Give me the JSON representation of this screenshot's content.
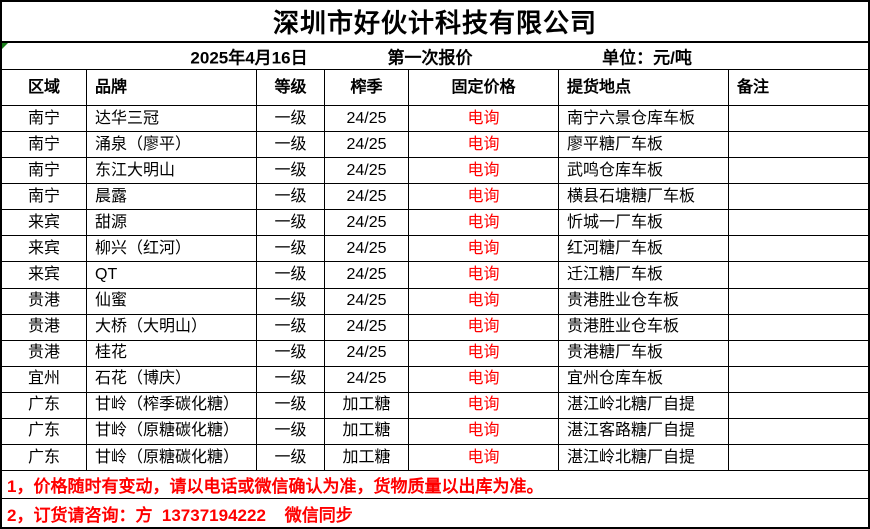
{
  "company": {
    "title": "深圳市好伙计科技有限公司"
  },
  "subheader": {
    "date": "2025年4月16日",
    "round": "第一次报价",
    "unit": "单位：元/吨"
  },
  "table": {
    "headers": [
      "区域",
      "品牌",
      "等级",
      "榨季",
      "固定价格",
      "提货地点",
      "备注"
    ],
    "rows": [
      {
        "region": "南宁",
        "brand": "达华三冠",
        "grade": "一级",
        "season": "24/25",
        "price": "电询",
        "pickup": "南宁六景仓库车板",
        "note": ""
      },
      {
        "region": "南宁",
        "brand": "涌泉（廖平）",
        "grade": "一级",
        "season": "24/25",
        "price": "电询",
        "pickup": "廖平糖厂车板",
        "note": ""
      },
      {
        "region": "南宁",
        "brand": "东江大明山",
        "grade": "一级",
        "season": "24/25",
        "price": "电询",
        "pickup": "武鸣仓库车板",
        "note": ""
      },
      {
        "region": "南宁",
        "brand": "晨露",
        "grade": "一级",
        "season": "24/25",
        "price": "电询",
        "pickup": "横县石塘糖厂车板",
        "note": ""
      },
      {
        "region": "来宾",
        "brand": "甜源",
        "grade": "一级",
        "season": "24/25",
        "price": "电询",
        "pickup": "忻城一厂车板",
        "note": ""
      },
      {
        "region": "来宾",
        "brand": "柳兴（红河）",
        "grade": "一级",
        "season": "24/25",
        "price": "电询",
        "pickup": "红河糖厂车板",
        "note": ""
      },
      {
        "region": "来宾",
        "brand": "QT",
        "grade": "一级",
        "season": "24/25",
        "price": "电询",
        "pickup": "迁江糖厂车板",
        "note": ""
      },
      {
        "region": "贵港",
        "brand": "仙蜜",
        "grade": "一级",
        "season": "24/25",
        "price": "电询",
        "pickup": "贵港胜业仓车板",
        "note": ""
      },
      {
        "region": "贵港",
        "brand": "大桥（大明山）",
        "grade": "一级",
        "season": "24/25",
        "price": "电询",
        "pickup": "贵港胜业仓车板",
        "note": ""
      },
      {
        "region": "贵港",
        "brand": "桂花",
        "grade": "一级",
        "season": "24/25",
        "price": "电询",
        "pickup": "贵港糖厂车板",
        "note": ""
      },
      {
        "region": "宜州",
        "brand": "石花（博庆）",
        "grade": "一级",
        "season": "24/25",
        "price": "电询",
        "pickup": "宜州仓库车板",
        "note": ""
      },
      {
        "region": "广东",
        "brand": "甘岭（榨季碳化糖）",
        "grade": "一级",
        "season": "加工糖",
        "price": "电询",
        "pickup": "湛江岭北糖厂自提",
        "note": ""
      },
      {
        "region": "广东",
        "brand": "甘岭（原糖碳化糖）",
        "grade": "一级",
        "season": "加工糖",
        "price": "电询",
        "pickup": "湛江客路糖厂自提",
        "note": ""
      },
      {
        "region": "广东",
        "brand": "甘岭（原糖碳化糖）",
        "grade": "一级",
        "season": "加工糖",
        "price": "电询",
        "pickup": "湛江岭北糖厂自提",
        "note": ""
      }
    ]
  },
  "footer": {
    "note1": "1，价格随时有变动，请以电话或微信确认为准，货物质量以出库为准。",
    "note2": "2，订货请咨询：方  13737194222    微信同步"
  },
  "colors": {
    "price_text": "#ff0000",
    "footer_text": "#ff0000",
    "border": "#000000",
    "error_indicator_green": "#1a7f1a"
  }
}
